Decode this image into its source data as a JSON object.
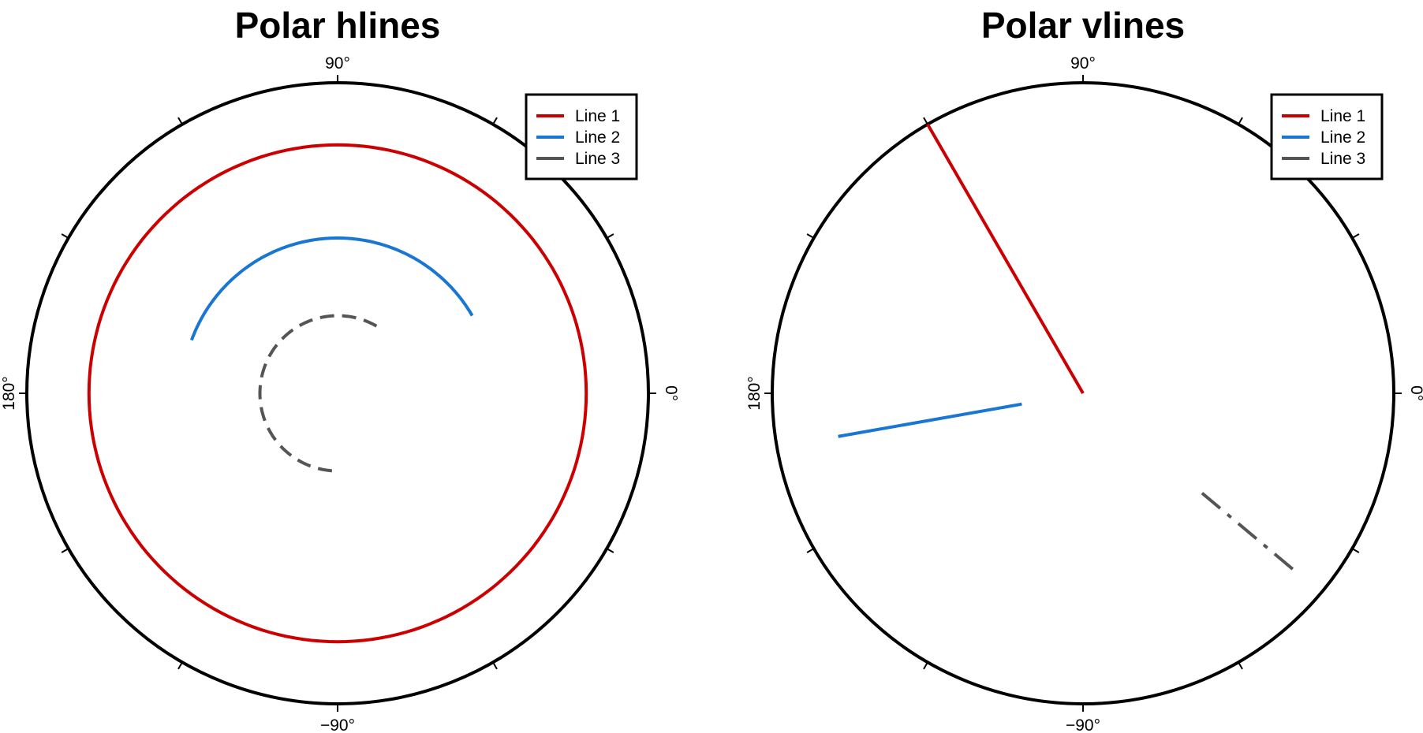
{
  "chart_data": [
    {
      "type": "line",
      "projection": "polar",
      "title": "Polar hlines",
      "theta_tick_labels": [
        "90°",
        "0°",
        "−90°",
        "180°"
      ],
      "theta_tick_step_deg": 30,
      "r_range": [
        0,
        1
      ],
      "legend_position": "top-right",
      "series": [
        {
          "name": "Line 1",
          "kind": "hline",
          "r": 0.8,
          "theta_range_deg": [
            0,
            360
          ],
          "color": "#cc0000",
          "style": "solid"
        },
        {
          "name": "Line 2",
          "kind": "hline",
          "r": 0.5,
          "theta_range_deg": [
            30,
            160
          ],
          "color": "#1976d2",
          "style": "solid"
        },
        {
          "name": "Line 3",
          "kind": "hline",
          "r": 0.25,
          "theta_range_deg": [
            60,
            270
          ],
          "color": "#555555",
          "style": "dashed"
        }
      ]
    },
    {
      "type": "line",
      "projection": "polar",
      "title": "Polar vlines",
      "theta_tick_labels": [
        "90°",
        "0°",
        "−90°",
        "180°"
      ],
      "theta_tick_step_deg": 30,
      "r_range": [
        0,
        1
      ],
      "legend_position": "top-right",
      "series": [
        {
          "name": "Line 1",
          "kind": "vline",
          "theta_deg": 120,
          "r_range": [
            0,
            1
          ],
          "color": "#cc0000",
          "style": "solid"
        },
        {
          "name": "Line 2",
          "kind": "vline",
          "theta_deg": 190,
          "r_range": [
            0.2,
            0.8
          ],
          "color": "#1976d2",
          "style": "solid"
        },
        {
          "name": "Line 3",
          "kind": "vline",
          "theta_deg": -40,
          "r_range": [
            0.5,
            0.9
          ],
          "color": "#555555",
          "style": "dashdot"
        }
      ]
    }
  ]
}
